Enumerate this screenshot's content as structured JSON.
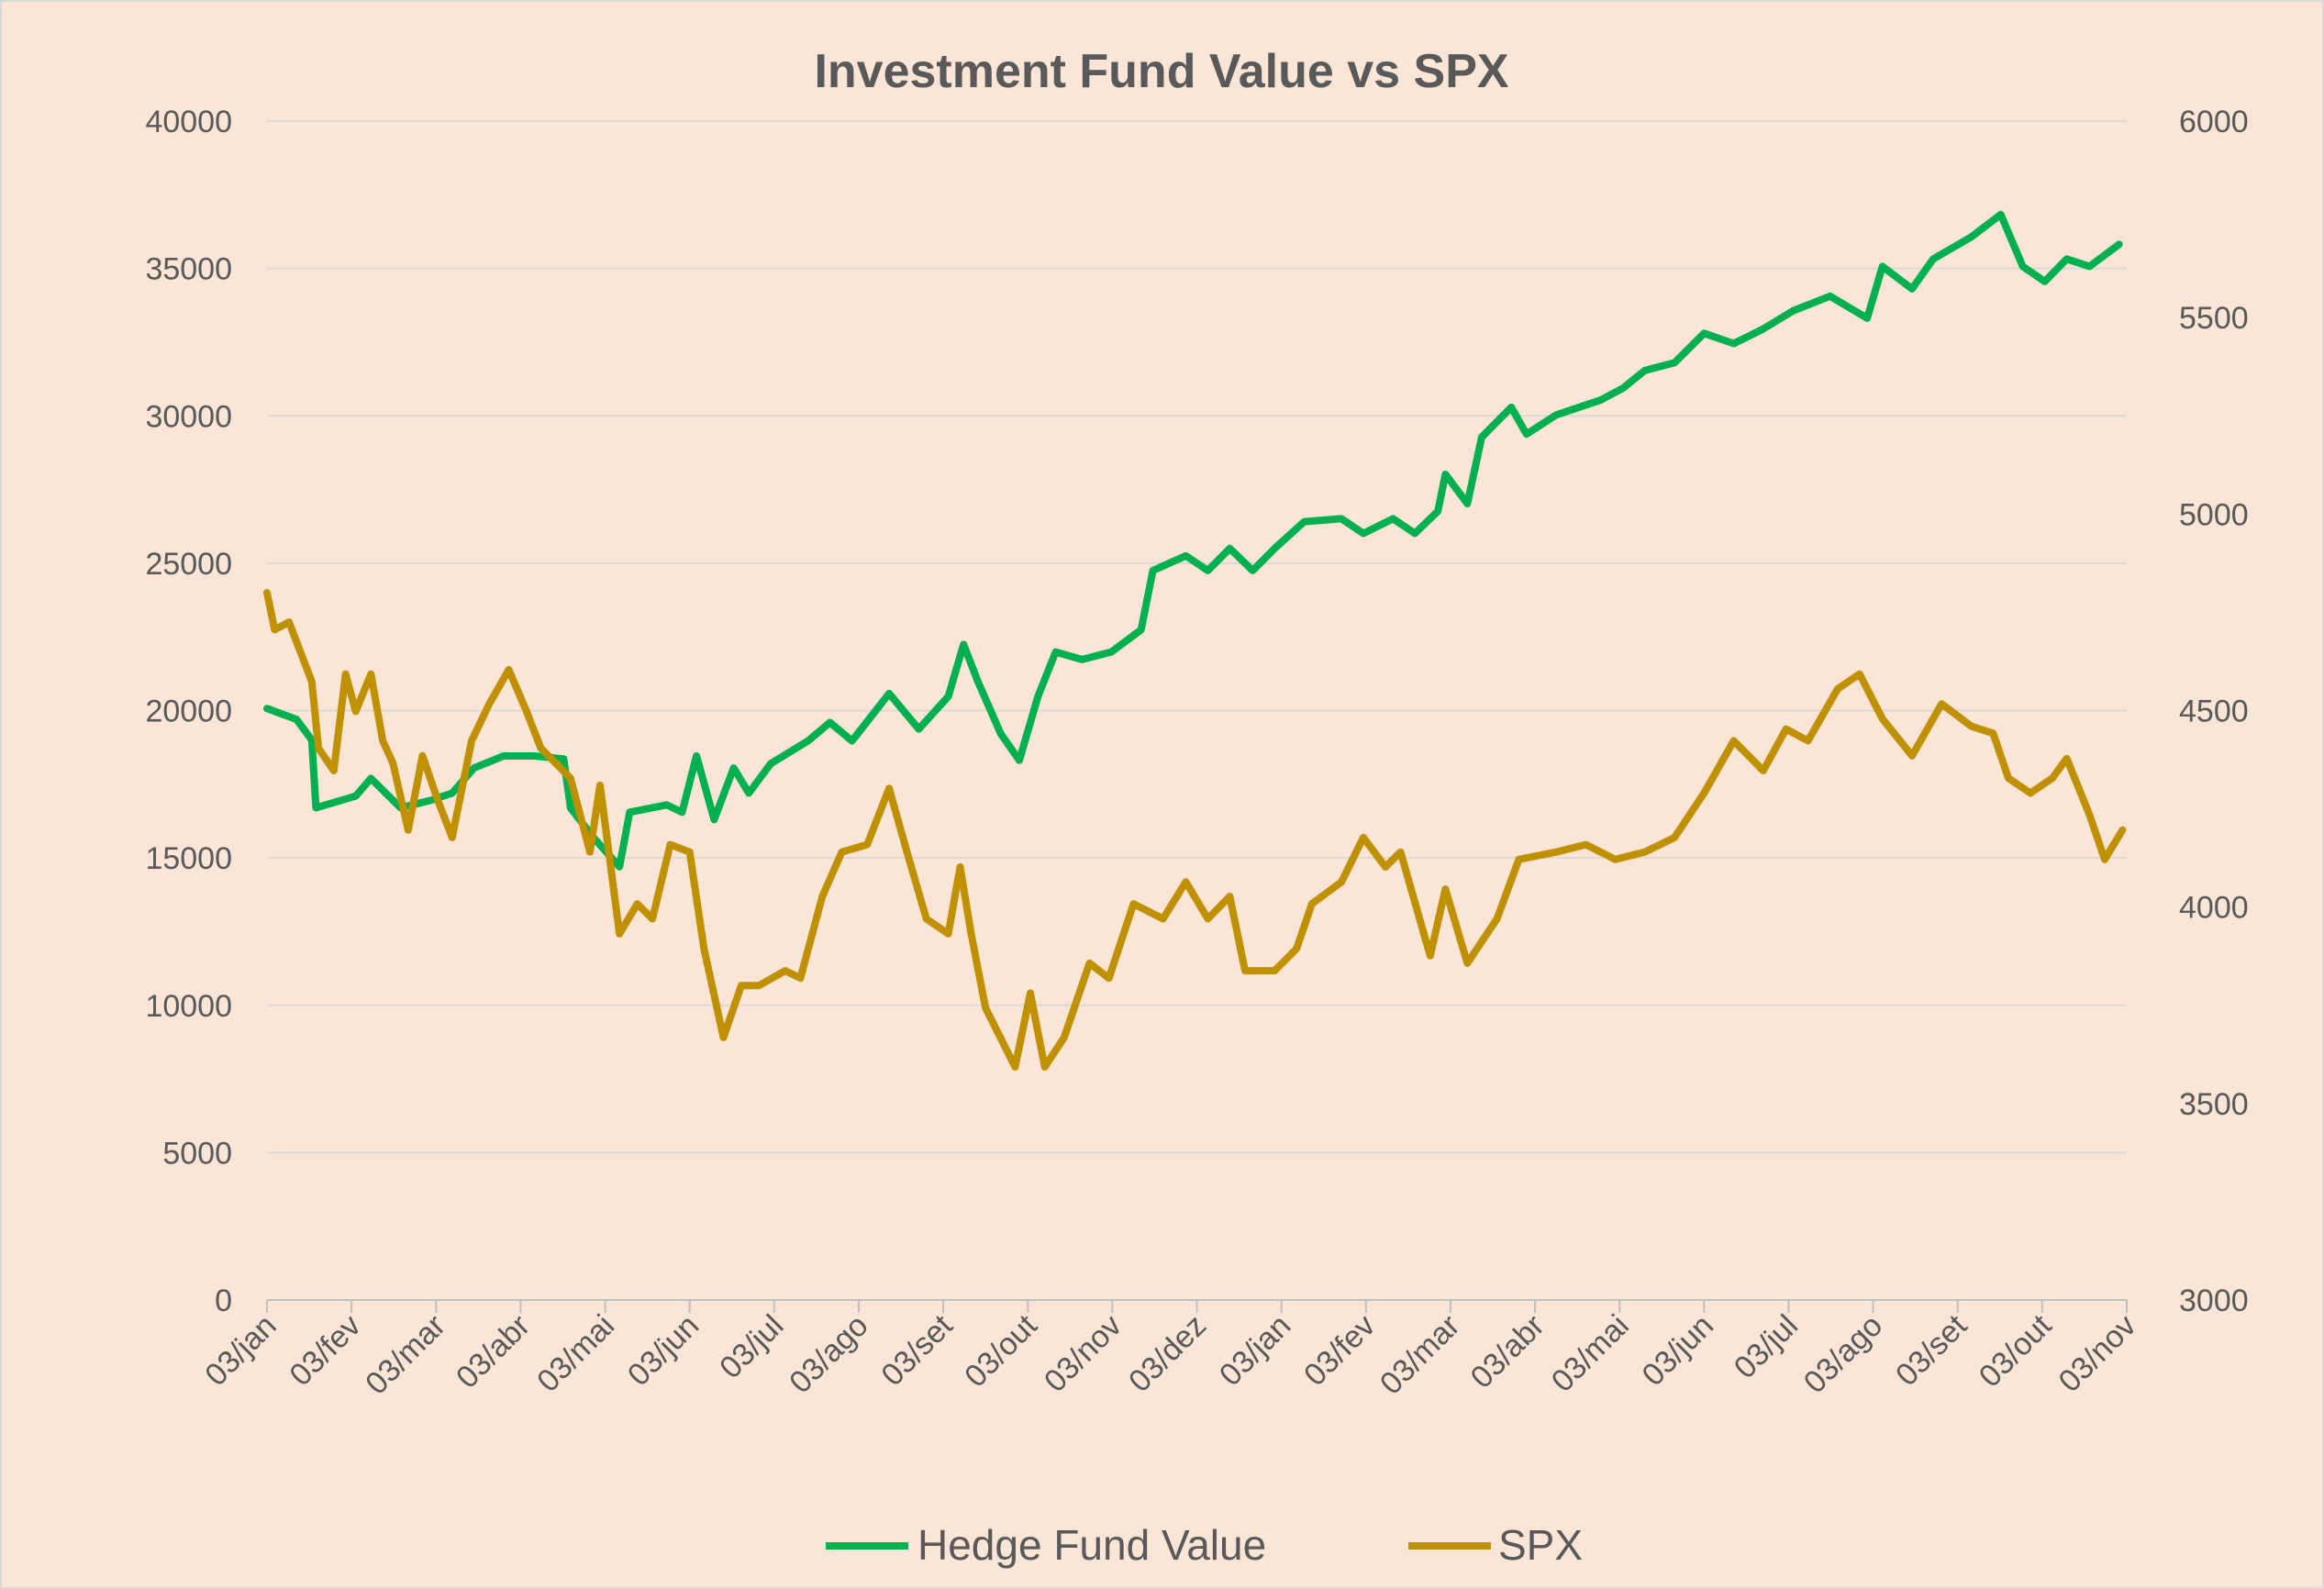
{
  "chart_data": {
    "type": "line",
    "title": "Investment Fund Value vs SPX",
    "xlabel": "",
    "ylabel": "",
    "x_unit": "months since first 03/jan",
    "x_tick_labels": [
      "03/jan",
      "03/fev",
      "03/mar",
      "03/abr",
      "03/mai",
      "03/jun",
      "03/jul",
      "03/ago",
      "03/set",
      "03/out",
      "03/nov",
      "03/dez",
      "03/jan",
      "03/fev",
      "03/mar",
      "03/abr",
      "03/mai",
      "03/jun",
      "03/jul",
      "03/ago",
      "03/set",
      "03/out",
      "03/nov"
    ],
    "y_left": {
      "min": 0,
      "max": 40000,
      "step": 5000,
      "ticks": [
        "0",
        "5000",
        "10000",
        "15000",
        "20000",
        "25000",
        "30000",
        "35000",
        "40000"
      ]
    },
    "y_right": {
      "min": 3000,
      "max": 6000,
      "step": 500,
      "ticks": [
        "3000",
        "3500",
        "4000",
        "4500",
        "5000",
        "5500",
        "6000"
      ]
    },
    "grid": true,
    "legend_position": "bottom",
    "series": [
      {
        "name": "Hedge Fund Value",
        "axis": "left",
        "color": "#00B050",
        "x": [
          0,
          0.35,
          0.53,
          0.58,
          1.05,
          1.23,
          1.58,
          1.93,
          2.19,
          2.45,
          2.8,
          3.16,
          3.51,
          3.59,
          3.86,
          4.17,
          4.29,
          4.73,
          4.91,
          5.08,
          5.29,
          5.52,
          5.7,
          5.96,
          6.4,
          6.66,
          6.92,
          7.36,
          7.71,
          8.06,
          8.24,
          8.41,
          8.68,
          8.9,
          9.12,
          9.33,
          9.64,
          9.99,
          10.34,
          10.48,
          10.87,
          11.13,
          11.39,
          11.66,
          11.92,
          12.27,
          12.71,
          12.97,
          13.32,
          13.58,
          13.85,
          13.94,
          14.2,
          14.37,
          14.72,
          14.9,
          15.25,
          15.78,
          16.04,
          16.3,
          16.65,
          17.0,
          17.35,
          17.7,
          18.05,
          18.49,
          18.93,
          19.11,
          19.46,
          19.71,
          20.16,
          20.51,
          20.77,
          21.03,
          21.29,
          21.56,
          21.91
        ],
        "values": [
          20070,
          19700,
          19000,
          16700,
          17100,
          17700,
          16700,
          16950,
          17200,
          18050,
          18460,
          18460,
          18360,
          16700,
          15700,
          14700,
          16550,
          16800,
          16550,
          18460,
          16300,
          18050,
          17200,
          18200,
          18970,
          19600,
          18970,
          20580,
          19370,
          20480,
          22240,
          20980,
          19220,
          18310,
          20480,
          21990,
          21730,
          21990,
          22740,
          24750,
          25250,
          24750,
          25500,
          24750,
          25500,
          26410,
          26510,
          26010,
          26510,
          26010,
          26760,
          28020,
          27020,
          29280,
          30290,
          29380,
          30030,
          30540,
          30940,
          31540,
          31800,
          32800,
          32450,
          32950,
          33560,
          34060,
          33310,
          35070,
          34310,
          35320,
          36070,
          36830,
          35070,
          34560,
          35320,
          35070,
          35820
        ]
      },
      {
        "name": "SPX",
        "axis": "right",
        "color": "#BF9000",
        "x": [
          0,
          0.09,
          0.26,
          0.53,
          0.61,
          0.79,
          0.93,
          1.05,
          1.23,
          1.37,
          1.49,
          1.67,
          1.84,
          2.02,
          2.19,
          2.42,
          2.63,
          2.86,
          3.07,
          3.24,
          3.59,
          3.82,
          3.94,
          4.17,
          4.38,
          4.56,
          4.77,
          5.0,
          5.17,
          5.4,
          5.61,
          5.82,
          6.13,
          6.31,
          6.57,
          6.8,
          7.1,
          7.36,
          7.57,
          7.8,
          8.06,
          8.2,
          8.33,
          8.5,
          8.85,
          9.03,
          9.2,
          9.43,
          9.73,
          9.96,
          10.25,
          10.6,
          10.87,
          11.13,
          11.39,
          11.57,
          11.92,
          12.18,
          12.36,
          12.71,
          12.97,
          13.23,
          13.41,
          13.76,
          13.94,
          14.2,
          14.55,
          14.81,
          15.25,
          15.6,
          15.95,
          16.3,
          16.65,
          17.0,
          17.35,
          17.7,
          17.97,
          18.23,
          18.58,
          18.84,
          19.11,
          19.46,
          19.81,
          20.16,
          20.42,
          20.6,
          20.86,
          21.12,
          21.29,
          21.56,
          21.74,
          21.95
        ],
        "values": [
          4800,
          4706,
          4725,
          4574,
          4404,
          4347,
          4593,
          4498,
          4593,
          4423,
          4366,
          4196,
          4385,
          4272,
          4177,
          4423,
          4517,
          4604,
          4498,
          4404,
          4328,
          4140,
          4310,
          3932,
          4008,
          3970,
          4159,
          4140,
          3894,
          3668,
          3800,
          3800,
          3838,
          3819,
          4027,
          4140,
          4159,
          4302,
          4140,
          3970,
          3932,
          4102,
          3932,
          3743,
          3593,
          3781,
          3593,
          3668,
          3857,
          3819,
          4008,
          3970,
          4064,
          3970,
          4027,
          3838,
          3838,
          3894,
          4008,
          4064,
          4177,
          4102,
          4140,
          3876,
          4046,
          3857,
          3970,
          4121,
          4140,
          4159,
          4121,
          4140,
          4177,
          4290,
          4423,
          4347,
          4453,
          4423,
          4555,
          4593,
          4479,
          4385,
          4517,
          4460,
          4442,
          4328,
          4290,
          4328,
          4378,
          4234,
          4121,
          4196
        ]
      }
    ]
  }
}
